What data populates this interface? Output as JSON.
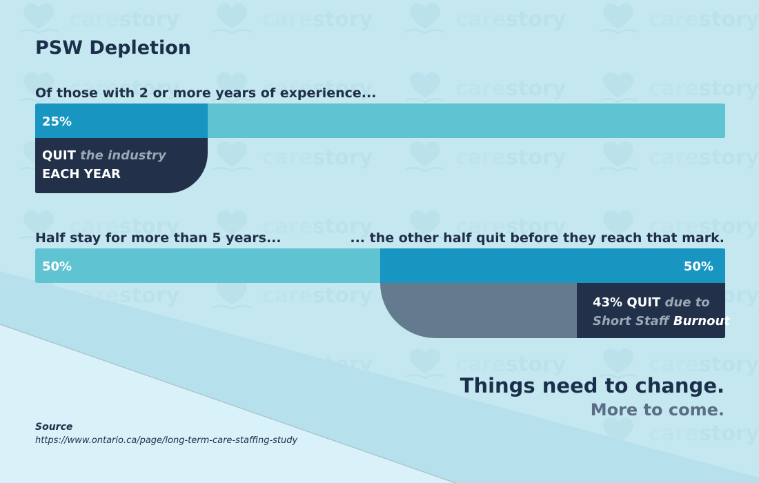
{
  "title": "PSW Depletion",
  "watermark": {
    "brand_light": "care",
    "brand_dark": "story",
    "icon": "heart-book-icon"
  },
  "colors": {
    "background": "#c5e7f0",
    "dark_blue": "#1995c1",
    "light_blue": "#5fc3d2",
    "navy": "#22304a",
    "slate": "#637a8f"
  },
  "chart_data": [
    {
      "type": "bar",
      "label": "Of those with 2 or more years of experience...",
      "segments": [
        {
          "label": "25%",
          "value": 25
        },
        {
          "label": "",
          "value": 75
        }
      ],
      "callout": {
        "strong": "QUIT",
        "soft": "the industry",
        "line2": "EACH YEAR"
      }
    },
    {
      "type": "bar",
      "label_left": "Half stay for more than 5 years...",
      "label_right": "... the other half quit before they reach that mark.",
      "segments": [
        {
          "label": "50%",
          "value": 50
        },
        {
          "label": "50%",
          "value": 50
        }
      ],
      "callout": {
        "value": 43,
        "strong": "43% QUIT",
        "soft": "due to",
        "line2_soft": "Short Staff",
        "line2_emph": "Burnout"
      }
    }
  ],
  "slogan": {
    "line1": "Things need to change.",
    "line2": "More to come."
  },
  "source": {
    "heading": "Source",
    "url": "https://www.ontario.ca/page/long-term-care-staffing-study"
  }
}
